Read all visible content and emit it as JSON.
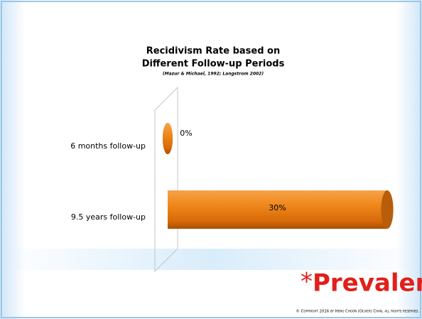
{
  "chart_data": {
    "type": "bar",
    "orientation": "horizontal",
    "title": [
      "Recidivism Rate based on",
      "Different Follow-up Periods"
    ],
    "subtitle": "(Mazur & Michael, 1992; Langstrom 2002)",
    "categories": [
      "6 months follow-up",
      "9.5 years follow-up"
    ],
    "values": [
      0,
      30
    ],
    "value_labels": [
      "0%",
      "30%"
    ],
    "color": "#e8780f",
    "xlim": [
      0,
      30
    ]
  },
  "slide": {
    "heading_mark": "*",
    "heading": "Prevalence",
    "footer": "© Copyright 2016 by Heng Choon (Oliver) Chan, all rights reserved."
  }
}
